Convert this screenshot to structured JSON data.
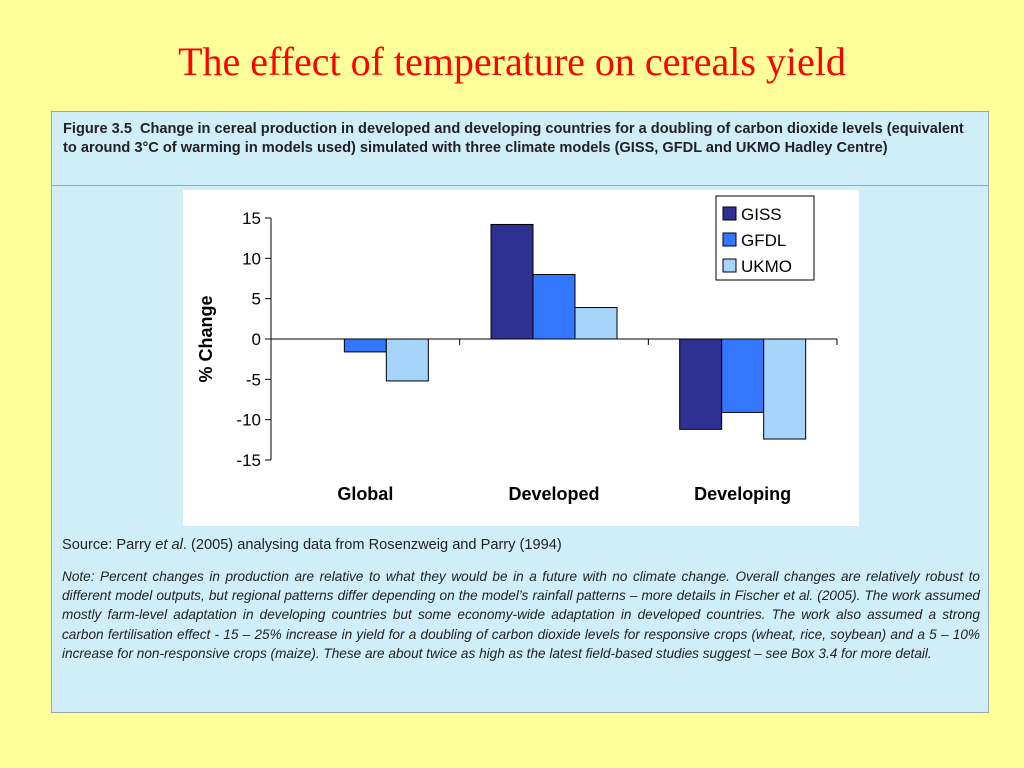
{
  "slide": {
    "title": "The effect of temperature on cereals yield"
  },
  "figure": {
    "label": "Figure 3.5",
    "caption": "Change in cereal production in developed and developing countries for a doubling of carbon dioxide levels (equivalent to around 3°C of warming in models used) simulated with three climate models (GISS, GFDL and UKMO Hadley Centre)",
    "source_prefix": "Source: Parry ",
    "source_italic": "et al",
    "source_suffix": ". (2005) analysing data from Rosenzweig and Parry (1994)",
    "note": "Note: Percent changes in production are relative to what they would be in a future with no climate change. Overall changes are relatively robust to different model outputs, but regional patterns differ depending on the model’s rainfall patterns – more details in Fischer et al. (2005). The work assumed mostly farm-level adaptation in developing countries but some economy-wide adaptation in developed countries. The work also assumed a strong carbon fertilisation effect - 15 – 25% increase in yield for a doubling of carbon dioxide levels for responsive crops (wheat, rice, soybean) and a 5 – 10% increase for non-responsive crops (maize). These are about twice as high as the latest field-based studies suggest – see Box 3.4 for more detail."
  },
  "chart_data": {
    "type": "bar",
    "title": "",
    "xlabel": "",
    "ylabel": "% Change",
    "ylim": [
      -15,
      15
    ],
    "yticks": [
      15,
      10,
      5,
      0,
      -5,
      -10,
      -15
    ],
    "categories": [
      "Global",
      "Developed",
      "Developing"
    ],
    "series": [
      {
        "name": "GISS",
        "color": "#2e3192",
        "values": [
          0,
          14.2,
          -11.2
        ]
      },
      {
        "name": "GFDL",
        "color": "#3377ff",
        "values": [
          -1.6,
          8.0,
          -9.1
        ]
      },
      {
        "name": "UKMO",
        "color": "#a6d4fa",
        "values": [
          -5.2,
          3.9,
          -12.4
        ]
      }
    ],
    "grid": false,
    "legend": "top-right"
  }
}
